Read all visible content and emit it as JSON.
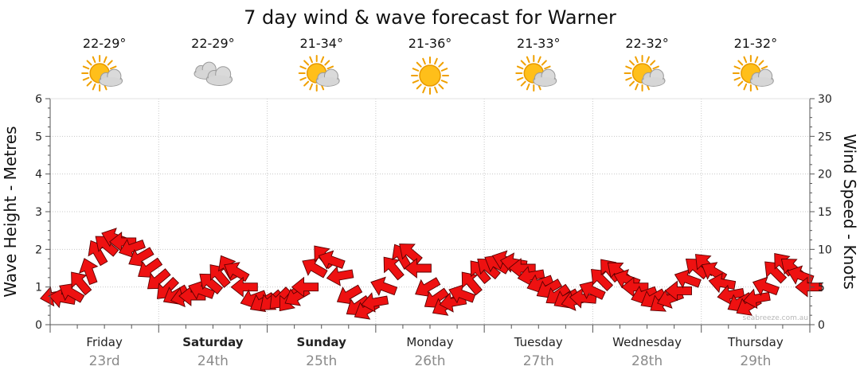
{
  "chart_data": {
    "type": "line",
    "title": "7 day wind & wave forecast for Warner",
    "ylabel": "Wave Height - Metres",
    "y2label": "Wind Speed - Knots",
    "ylim": [
      0,
      6
    ],
    "y2lim": [
      0,
      30
    ],
    "yticks": [
      "0",
      "1",
      "2",
      "3",
      "4",
      "5",
      "6"
    ],
    "y2ticks": [
      "0",
      "5",
      "10",
      "15",
      "20",
      "25",
      "30"
    ],
    "grid": true,
    "days": [
      {
        "name": "Friday",
        "date": "23rd",
        "temp": "22-29°",
        "icon": "sun-cloud-icon",
        "bold": false
      },
      {
        "name": "Saturday",
        "date": "24th",
        "temp": "22-29°",
        "icon": "cloud-icon",
        "bold": true
      },
      {
        "name": "Sunday",
        "date": "25th",
        "temp": "21-34°",
        "icon": "sun-cloud-icon",
        "bold": true
      },
      {
        "name": "Monday",
        "date": "26th",
        "temp": "21-36°",
        "icon": "sun-icon",
        "bold": false
      },
      {
        "name": "Tuesday",
        "date": "27th",
        "temp": "21-33°",
        "icon": "sun-cloud-icon",
        "bold": false
      },
      {
        "name": "Wednesday",
        "date": "28th",
        "temp": "22-32°",
        "icon": "sun-cloud-icon",
        "bold": false
      },
      {
        "name": "Thursday",
        "date": "29th",
        "temp": "21-32°",
        "icon": "sun-cloud-icon",
        "bold": false
      }
    ],
    "series": [
      {
        "kind": "wind-arrows",
        "unit": "knots",
        "x_days": [
          0.0,
          0.08,
          0.16,
          0.24,
          0.32,
          0.4,
          0.48,
          0.56,
          0.64,
          0.72,
          0.8,
          0.88,
          0.96,
          1.04,
          1.12,
          1.2,
          1.28,
          1.36,
          1.44,
          1.52,
          1.6,
          1.68,
          1.76,
          1.84,
          1.92,
          2.0,
          2.08,
          2.16,
          2.24,
          2.32,
          2.4,
          2.48,
          2.56,
          2.64,
          2.72,
          2.8,
          2.88,
          2.96,
          3.04,
          3.12,
          3.2,
          3.28,
          3.36,
          3.44,
          3.52,
          3.6,
          3.68,
          3.76,
          3.84,
          3.92,
          4.0,
          4.08,
          4.16,
          4.24,
          4.32,
          4.4,
          4.48,
          4.56,
          4.64,
          4.72,
          4.8,
          4.88,
          4.96,
          5.04,
          5.12,
          5.2,
          5.28,
          5.36,
          5.44,
          5.52,
          5.6,
          5.68,
          5.76,
          5.84,
          5.92,
          6.0,
          6.08,
          6.16,
          6.24,
          6.32,
          6.4,
          6.48,
          6.56,
          6.64,
          6.72,
          6.8,
          6.88,
          6.96
        ],
        "values": [
          3.8,
          3.5,
          4.2,
          5.5,
          7.0,
          9.5,
          10.5,
          11.5,
          11.0,
          10.2,
          9.0,
          7.5,
          6.0,
          4.8,
          4.0,
          3.7,
          3.8,
          4.5,
          5.5,
          6.5,
          7.5,
          7.0,
          5.0,
          3.5,
          3.0,
          3.2,
          3.5,
          3.3,
          3.8,
          5.0,
          7.5,
          9.0,
          8.5,
          6.5,
          4.0,
          2.5,
          2.0,
          3.0,
          5.0,
          7.5,
          9.0,
          9.5,
          7.5,
          5.0,
          3.5,
          2.5,
          3.0,
          4.0,
          5.5,
          7.0,
          7.5,
          8.0,
          8.5,
          8.2,
          7.5,
          6.5,
          5.5,
          4.8,
          4.0,
          3.5,
          3.2,
          3.5,
          4.5,
          6.0,
          7.2,
          7.0,
          6.0,
          5.0,
          4.0,
          3.5,
          3.0,
          3.5,
          4.5,
          6.0,
          7.5,
          8.0,
          7.0,
          5.5,
          4.0,
          3.0,
          2.5,
          3.5,
          5.0,
          7.0,
          8.0,
          7.5,
          6.5,
          5.0
        ],
        "directions_deg": [
          170,
          190,
          210,
          230,
          250,
          240,
          220,
          200,
          180,
          160,
          150,
          145,
          140,
          135,
          150,
          165,
          180,
          200,
          220,
          230,
          240,
          210,
          180,
          160,
          150,
          140,
          135,
          130,
          150,
          180,
          210,
          230,
          200,
          170,
          150,
          145,
          150,
          170,
          200,
          230,
          240,
          220,
          180,
          150,
          145,
          150,
          170,
          200,
          230,
          230,
          220,
          210,
          200,
          190,
          180,
          170,
          160,
          150,
          145,
          150,
          165,
          185,
          205,
          225,
          230,
          220,
          200,
          180,
          160,
          150,
          145,
          160,
          180,
          200,
          220,
          225,
          210,
          190,
          170,
          150,
          150,
          170,
          200,
          225,
          230,
          220,
          200,
          180
        ]
      }
    ],
    "watermark": "seabreeze.com.au"
  }
}
